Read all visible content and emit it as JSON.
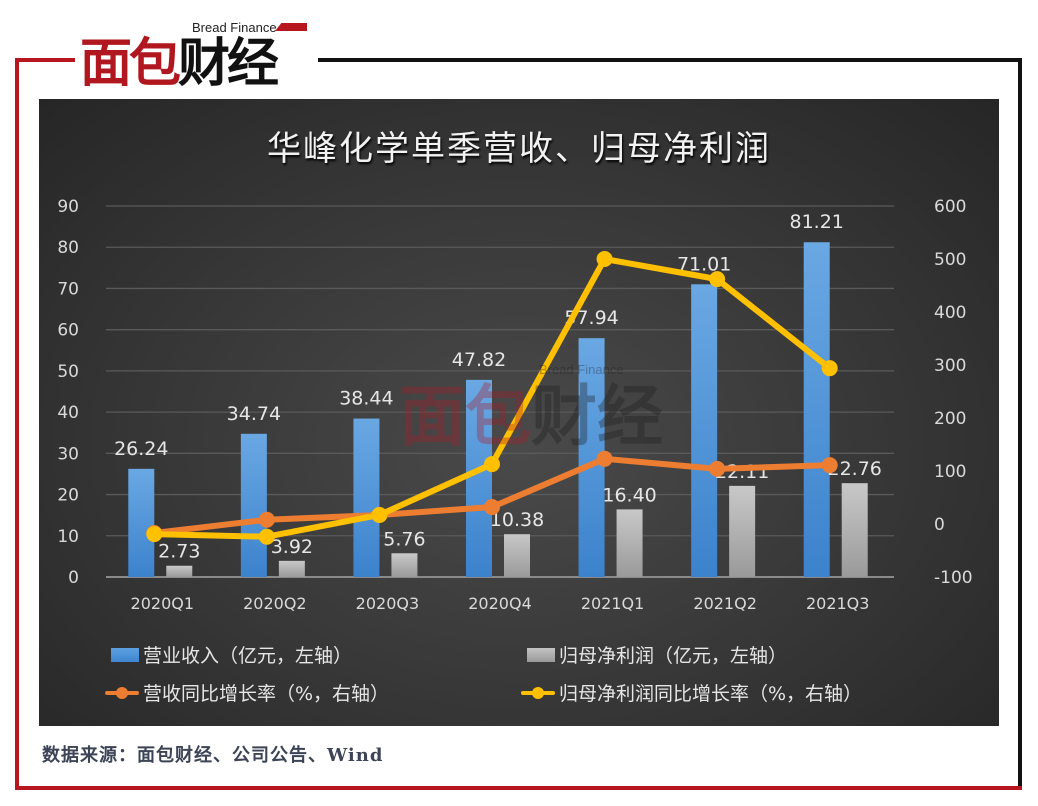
{
  "brand": {
    "cn_red": "面包",
    "cn_black": "财经",
    "en": "Bread Finance"
  },
  "title": "华峰化学单季营收、归母净利润",
  "source": "数据来源：面包财经、公司公告、Wind",
  "legend": [
    {
      "label": "营业收入（亿元，左轴）",
      "color": "#4a8fd6",
      "kind": "bar"
    },
    {
      "label": "归母净利润（亿元，左轴）",
      "color": "#a6a6a6",
      "kind": "bar"
    },
    {
      "label": "营收同比增长率（%，右轴）",
      "color": "#ed7d31",
      "kind": "line"
    },
    {
      "label": "归母净利润同比增长率（%，右轴）",
      "color": "#ffc000",
      "kind": "line"
    }
  ],
  "chart_data": {
    "type": "bar+line",
    "title": "华峰化学单季营收、归母净利润",
    "categories": [
      "2020Q1",
      "2020Q2",
      "2020Q3",
      "2020Q4",
      "2021Q1",
      "2021Q2",
      "2021Q3"
    ],
    "series": [
      {
        "name": "营业收入（亿元，左轴）",
        "type": "bar",
        "axis": "left",
        "color": "#4a8fd6",
        "values": [
          26.24,
          34.74,
          38.44,
          47.82,
          57.94,
          71.01,
          81.21
        ]
      },
      {
        "name": "归母净利润（亿元，左轴）",
        "type": "bar",
        "axis": "left",
        "color": "#a6a6a6",
        "values": [
          2.73,
          3.92,
          5.76,
          10.38,
          16.4,
          22.11,
          22.76
        ]
      },
      {
        "name": "营收同比增长率（%，右轴）",
        "type": "line",
        "axis": "right",
        "color": "#ed7d31",
        "values": [
          -17,
          8,
          17,
          32,
          123,
          104,
          111
        ]
      },
      {
        "name": "归母净利润同比增长率（%，右轴）",
        "type": "line",
        "axis": "right",
        "color": "#ffc000",
        "values": [
          -19,
          -24,
          17,
          113,
          500,
          462,
          294
        ]
      }
    ],
    "left_axis": {
      "ticks": [
        0,
        10,
        20,
        30,
        40,
        50,
        60,
        70,
        80,
        90
      ],
      "ylim": [
        0,
        90
      ]
    },
    "right_axis": {
      "ticks": [
        -100,
        0,
        100,
        200,
        300,
        400,
        500,
        600
      ],
      "ylim": [
        -100,
        600
      ]
    },
    "grid": true,
    "legend_position": "bottom"
  }
}
